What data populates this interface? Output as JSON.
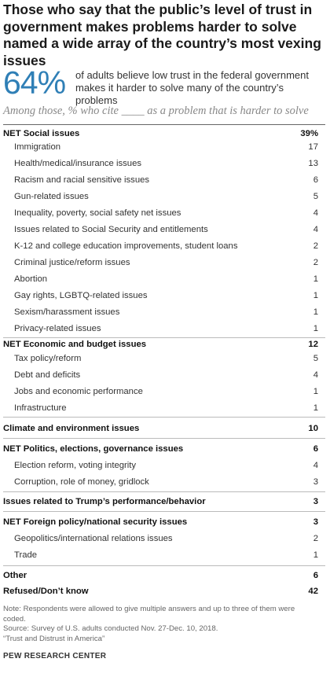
{
  "title": "Those who say that the public’s level of trust in government makes problems harder to solve named a wide array of the country’s most vexing issues",
  "stat": {
    "percent": "64%",
    "line1": "of adults believe low trust in the federal government",
    "line2": "makes it harder to solve many of the country’s problems"
  },
  "subtitle": "Among those, % who cite ____ as a problem that is harder to solve",
  "chart_data": {
    "type": "table",
    "rows": [
      {
        "label": "NET Social issues",
        "value": "39%",
        "net": true
      },
      {
        "label": "Immigration",
        "value": "17",
        "net": false
      },
      {
        "label": "Health/medical/insurance issues",
        "value": "13",
        "net": false
      },
      {
        "label": "Racism and racial sensitive issues",
        "value": "6",
        "net": false
      },
      {
        "label": "Gun-related issues",
        "value": "5",
        "net": false
      },
      {
        "label": "Inequality, poverty, social safety net issues",
        "value": "4",
        "net": false
      },
      {
        "label": "Issues related to Social Security and entitlements",
        "value": "4",
        "net": false
      },
      {
        "label": "K-12 and college education improvements, student loans",
        "value": "2",
        "net": false
      },
      {
        "label": "Criminal justice/reform issues",
        "value": "2",
        "net": false
      },
      {
        "label": "Abortion",
        "value": "1",
        "net": false
      },
      {
        "label": "Gay rights, LGBTQ-related issues",
        "value": "1",
        "net": false
      },
      {
        "label": "Sexism/harassment issues",
        "value": "1",
        "net": false
      },
      {
        "label": "Privacy-related issues",
        "value": "1",
        "net": false
      },
      {
        "label": "NET Economic and budget issues",
        "value": "12",
        "net": true
      },
      {
        "label": "Tax policy/reform",
        "value": "5",
        "net": false
      },
      {
        "label": "Debt and deficits",
        "value": "4",
        "net": false
      },
      {
        "label": "Jobs and economic performance",
        "value": "1",
        "net": false
      },
      {
        "label": "Infrastructure",
        "value": "1",
        "net": false
      },
      {
        "label": "Climate and environment issues",
        "value": "10",
        "net": true
      },
      {
        "label": "NET Politics, elections, governance issues",
        "value": "6",
        "net": true
      },
      {
        "label": "Election reform, voting integrity",
        "value": "4",
        "net": false
      },
      {
        "label": "Corruption, role of money, gridlock",
        "value": "3",
        "net": false
      },
      {
        "label": "Issues related to Trump’s performance/behavior",
        "value": "3",
        "net": true
      },
      {
        "label": "NET Foreign policy/national security issues",
        "value": "3",
        "net": true
      },
      {
        "label": "Geopolitics/international relations issues",
        "value": "2",
        "net": false
      },
      {
        "label": "Trade",
        "value": "1",
        "net": false
      },
      {
        "label": "Other",
        "value": "6",
        "net": true
      },
      {
        "label": "Refused/Don’t know",
        "value": "42",
        "net": true
      }
    ]
  },
  "footer": {
    "note1": "Note: Respondents were allowed to give multiple answers and up to three of them were",
    "note2": "coded.",
    "source": "Source: Survey of U.S. adults conducted Nov. 27-Dec. 10, 2018.",
    "report": "“Trust and Distrust in America”",
    "org": "PEW RESEARCH CENTER"
  }
}
